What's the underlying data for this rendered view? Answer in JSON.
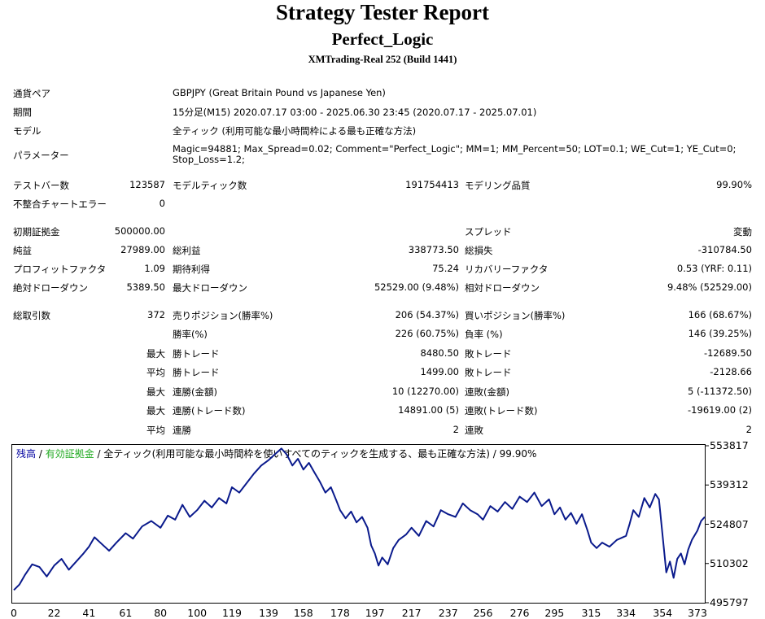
{
  "header": {
    "title": "Strategy Tester Report",
    "subtitle": "Perfect_Logic",
    "server": "XMTrading-Real 252 (Build 1441)"
  },
  "info": {
    "pair_label": "通貨ペア",
    "pair_value": "GBPJPY (Great Britain Pound vs Japanese Yen)",
    "period_label": "期間",
    "period_value": "15分足(M15) 2020.07.17 03:00 - 2025.06.30 23:45 (2020.07.17 - 2025.07.01)",
    "model_label": "モデル",
    "model_value": "全ティック (利用可能な最小時間枠による最も正確な方法)",
    "params_label": "パラメーター",
    "params_line1": "Magic=94881; Max_Spread=0.02; Comment=\"Perfect_Logic\"; MM=1; MM_Percent=50; LOT=0.1; WE_Cut=1; YE_Cut=0;",
    "params_line2": "Stop_Loss=1.2;"
  },
  "stats": {
    "bars_label": "テストバー数",
    "bars_value": "123587",
    "ticks_label": "モデルティック数",
    "ticks_value": "191754413",
    "quality_label": "モデリング品質",
    "quality_value": "99.90%",
    "errors_label": "不整合チャートエラー",
    "errors_value": "0",
    "deposit_label": "初期証拠金",
    "deposit_value": "500000.00",
    "spread_label": "スプレッド",
    "spread_value": "変動",
    "net_label": "純益",
    "net_value": "27989.00",
    "gross_profit_label": "総利益",
    "gross_profit_value": "338773.50",
    "gross_loss_label": "総損失",
    "gross_loss_value": "-310784.50",
    "pf_label": "プロフィットファクタ",
    "pf_value": "1.09",
    "expected_label": "期待利得",
    "expected_value": "75.24",
    "recovery_label": "リカバリーファクタ",
    "recovery_value": "0.53 (YRF: 0.11)",
    "abs_dd_label": "絶対ドローダウン",
    "abs_dd_value": "5389.50",
    "max_dd_label": "最大ドローダウン",
    "max_dd_value": "52529.00 (9.48%)",
    "rel_dd_label": "相対ドローダウン",
    "rel_dd_value": "9.48% (52529.00)",
    "trades_label": "総取引数",
    "trades_value": "372",
    "short_label": "売りポジション(勝率%)",
    "short_value": "206 (54.37%)",
    "long_label": "買いポジション(勝率%)",
    "long_value": "166 (68.67%)",
    "win_rate_label": "勝率(%)",
    "win_rate_value": "226 (60.75%)",
    "loss_rate_label": "負率 (%)",
    "loss_rate_value": "146 (39.25%)",
    "max_label": "最大",
    "avg_label": "平均",
    "max_win_label": "勝トレード",
    "max_win_value": "8480.50",
    "max_loss_label": "敗トレード",
    "max_loss_value": "-12689.50",
    "avg_win_label": "勝トレード",
    "avg_win_value": "1499.00",
    "avg_loss_label": "敗トレード",
    "avg_loss_value": "-2128.66",
    "max_cons_win_label": "連勝(金額)",
    "max_cons_win_value": "10 (12270.00)",
    "max_cons_loss_label": "連敗(金額)",
    "max_cons_loss_value": "5 (-11372.50)",
    "max_cons_profit_label": "連勝(トレード数)",
    "max_cons_profit_value": "14891.00 (5)",
    "max_cons_lossamt_label": "連敗(トレード数)",
    "max_cons_lossamt_value": "-19619.00 (2)",
    "avg_cons_win_label": "連勝",
    "avg_cons_win_value": "2",
    "avg_cons_loss_label": "連敗",
    "avg_cons_loss_value": "2"
  },
  "legend": {
    "balance": "残高",
    "sep1": " / ",
    "equity": "有効証拠金",
    "sep2": " / ",
    "rest": "全ティック(利用可能な最小時間枠を使いすべてのティックを生成する、最も正確な方法) / 99.90%",
    "balance_color": "#0000a0",
    "equity_color": "#22aa22"
  },
  "chart_data": {
    "type": "line",
    "xlabel": "",
    "ylabel": "",
    "x_ticks": [
      "0",
      "22",
      "41",
      "61",
      "80",
      "100",
      "119",
      "139",
      "158",
      "178",
      "197",
      "217",
      "237",
      "256",
      "276",
      "295",
      "315",
      "334",
      "354",
      "373"
    ],
    "y_ticks": [
      "553817",
      "539312",
      "524807",
      "510302",
      "495797"
    ],
    "xlim": [
      0,
      377
    ],
    "ylim": [
      495797,
      553817
    ],
    "series": [
      {
        "name": "残高",
        "color": "#0a1a8c",
        "x": [
          0,
          3,
          6,
          10,
          14,
          18,
          22,
          26,
          30,
          34,
          38,
          41,
          44,
          48,
          52,
          56,
          61,
          65,
          70,
          75,
          80,
          84,
          88,
          92,
          96,
          100,
          104,
          108,
          112,
          116,
          119,
          123,
          127,
          131,
          135,
          139,
          143,
          146,
          149,
          152,
          155,
          158,
          161,
          164,
          167,
          170,
          173,
          176,
          178,
          181,
          184,
          187,
          190,
          193,
          195,
          197,
          199,
          201,
          204,
          207,
          210,
          214,
          217,
          221,
          225,
          229,
          233,
          237,
          241,
          245,
          249,
          253,
          256,
          260,
          264,
          268,
          272,
          276,
          280,
          284,
          288,
          292,
          295,
          298,
          301,
          304,
          307,
          310,
          313,
          315,
          318,
          321,
          325,
          329,
          334,
          336,
          338,
          341,
          344,
          347,
          350,
          352,
          354,
          356,
          358,
          360,
          362,
          364,
          366,
          368,
          370,
          373,
          375,
          377
        ],
        "values": [
          500500,
          502500,
          506000,
          510000,
          509000,
          505500,
          509500,
          512000,
          508000,
          511000,
          514000,
          516500,
          520000,
          517500,
          515000,
          518000,
          521500,
          519500,
          524000,
          526000,
          523500,
          528000,
          526500,
          532000,
          527500,
          530000,
          533500,
          531000,
          534500,
          532500,
          538500,
          536500,
          540000,
          543500,
          546500,
          548500,
          551000,
          552800,
          550500,
          546500,
          549000,
          545000,
          547500,
          544000,
          540500,
          536500,
          538500,
          533500,
          530000,
          527000,
          529500,
          525500,
          527500,
          523500,
          517000,
          514000,
          509500,
          512500,
          510000,
          516000,
          519000,
          521000,
          523500,
          520500,
          526000,
          524000,
          530000,
          528500,
          527500,
          532500,
          530000,
          528500,
          526500,
          531500,
          529500,
          533000,
          530500,
          535000,
          533000,
          536500,
          531500,
          534000,
          528500,
          531000,
          526500,
          529000,
          525000,
          528500,
          522500,
          518000,
          516000,
          518000,
          516500,
          519000,
          520500,
          525000,
          530000,
          527500,
          534500,
          531000,
          536000,
          534000,
          520500,
          507000,
          511000,
          505000,
          512000,
          514000,
          510000,
          515500,
          519000,
          522500,
          526000,
          527500
        ]
      }
    ]
  }
}
